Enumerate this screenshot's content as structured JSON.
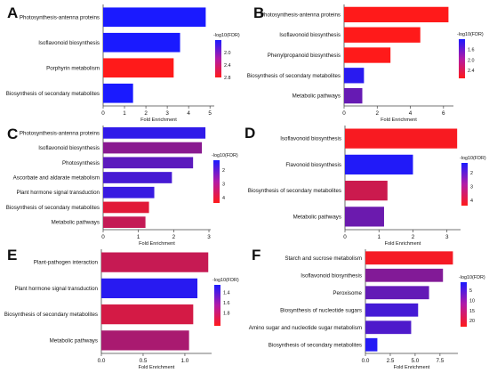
{
  "figure": {
    "colorbar_title": "-log10(FDR)",
    "xlabel": "Fold Enrichment"
  },
  "chart_data": [
    {
      "panel": "A",
      "type": "bar",
      "orientation": "horizontal",
      "xlabel": "Fold Enrichment",
      "xlim": [
        0,
        5.2
      ],
      "xticks": [
        "0",
        "1",
        "2",
        "3",
        "4",
        "5"
      ],
      "categories": [
        "Photosynthesis-antenna proteins",
        "Isoflavonoid biosynthesis",
        "Porphyrin metabolism",
        "Biosynthesis of secondary metabolites"
      ],
      "values": [
        4.8,
        3.6,
        3.3,
        1.4
      ],
      "fdr_neglog10": [
        1.6,
        1.6,
        2.8,
        1.6
      ],
      "colorbar": {
        "title": "-log10(FDR)",
        "min": 1.6,
        "max": 2.8,
        "ticks": [
          "2.0",
          "2.4",
          "2.8"
        ]
      }
    },
    {
      "panel": "B",
      "type": "bar",
      "orientation": "horizontal",
      "xlabel": "Fold Enrichment",
      "xlim": [
        0,
        6.6
      ],
      "xticks": [
        "0",
        "2",
        "4",
        "6"
      ],
      "categories": [
        "Photosynthesis-antenna proteins",
        "Isoflavonoid biosynthesis",
        "Phenylpropanoid biosynthesis",
        "Biosynthesis of secondary metabolites",
        "Metabolic pathways"
      ],
      "values": [
        6.3,
        4.6,
        2.8,
        1.2,
        1.1
      ],
      "fdr_neglog10": [
        2.7,
        2.7,
        2.7,
        1.3,
        1.7
      ],
      "colorbar": {
        "title": "-log10(FDR)",
        "min": 1.2,
        "max": 2.7,
        "ticks": [
          "1.6",
          "2.0",
          "2.4"
        ]
      }
    },
    {
      "panel": "C",
      "type": "bar",
      "orientation": "horizontal",
      "xlabel": "Fold Enrichment",
      "xlim": [
        0,
        3.05
      ],
      "xticks": [
        "0",
        "1",
        "2",
        "3"
      ],
      "categories": [
        "Photosynthesis-antenna proteins",
        "Isoflavonoid biosynthesis",
        "Photosynthesis",
        "Ascorbate and aldarate metabolism",
        "Plant hormone signal transduction",
        "Biosynthesis of secondary metabolites",
        "Metabolic pathways"
      ],
      "values": [
        2.9,
        2.8,
        2.55,
        1.95,
        1.45,
        1.3,
        1.2
      ],
      "fdr_neglog10": [
        1.6,
        2.8,
        2.2,
        1.9,
        1.7,
        4.0,
        3.6
      ],
      "colorbar": {
        "title": "-log10(FDR)",
        "min": 1.3,
        "max": 4.4,
        "ticks": [
          "2",
          "3",
          "4"
        ]
      }
    },
    {
      "panel": "D",
      "type": "bar",
      "orientation": "horizontal",
      "xlabel": "Fold Enrichment",
      "xlim": [
        0,
        3.4
      ],
      "xticks": [
        "0",
        "1",
        "2",
        "3"
      ],
      "categories": [
        "Isoflavonoid biosynthesis",
        "Flavonoid biosynthesis",
        "Biosynthesis of secondary metabolites",
        "Metabolic pathways"
      ],
      "values": [
        3.3,
        2.0,
        1.25,
        1.15
      ],
      "fdr_neglog10": [
        4.3,
        1.4,
        3.7,
        2.4
      ],
      "colorbar": {
        "title": "-log10(FDR)",
        "min": 1.3,
        "max": 4.4,
        "ticks": [
          "2",
          "3",
          "4"
        ]
      }
    },
    {
      "panel": "E",
      "type": "bar",
      "orientation": "horizontal",
      "xlabel": "Fold Enrichment",
      "xlim": [
        0,
        1.32
      ],
      "xticks": [
        "0.0",
        "0.5",
        "1.0"
      ],
      "categories": [
        "Plant-pathogen interaction",
        "Plant hormone signal transduction",
        "Biosynthesis of secondary metabolites",
        "Metabolic pathways"
      ],
      "values": [
        1.28,
        1.15,
        1.1,
        1.05
      ],
      "fdr_neglog10": [
        1.85,
        1.3,
        1.9,
        1.75
      ],
      "colorbar": {
        "title": "-log10(FDR)",
        "min": 1.25,
        "max": 2.05,
        "ticks": [
          "1.4",
          "1.6",
          "1.8"
        ]
      }
    },
    {
      "panel": "F",
      "type": "bar",
      "orientation": "horizontal",
      "xlabel": "Fold Enrichment",
      "xlim": [
        0,
        9.3
      ],
      "xticks": [
        "0.0",
        "2.5",
        "5.0",
        "7.5"
      ],
      "categories": [
        "Starch and sucrose metabolism",
        "Isoflavonoid biosynthesis",
        "Peroxisome",
        "Biosynthesis of nucleotide sugars",
        "Amino sugar and nucleotide sugar metabolism",
        "Biosynthesis of secondary metabolites"
      ],
      "values": [
        8.8,
        7.8,
        6.4,
        5.3,
        4.6,
        1.2
      ],
      "fdr_neglog10": [
        22,
        11,
        8,
        5,
        6,
        2
      ],
      "colorbar": {
        "title": "-log10(FDR)",
        "min": 1,
        "max": 23,
        "ticks": [
          "5",
          "10",
          "15",
          "20"
        ]
      }
    }
  ]
}
